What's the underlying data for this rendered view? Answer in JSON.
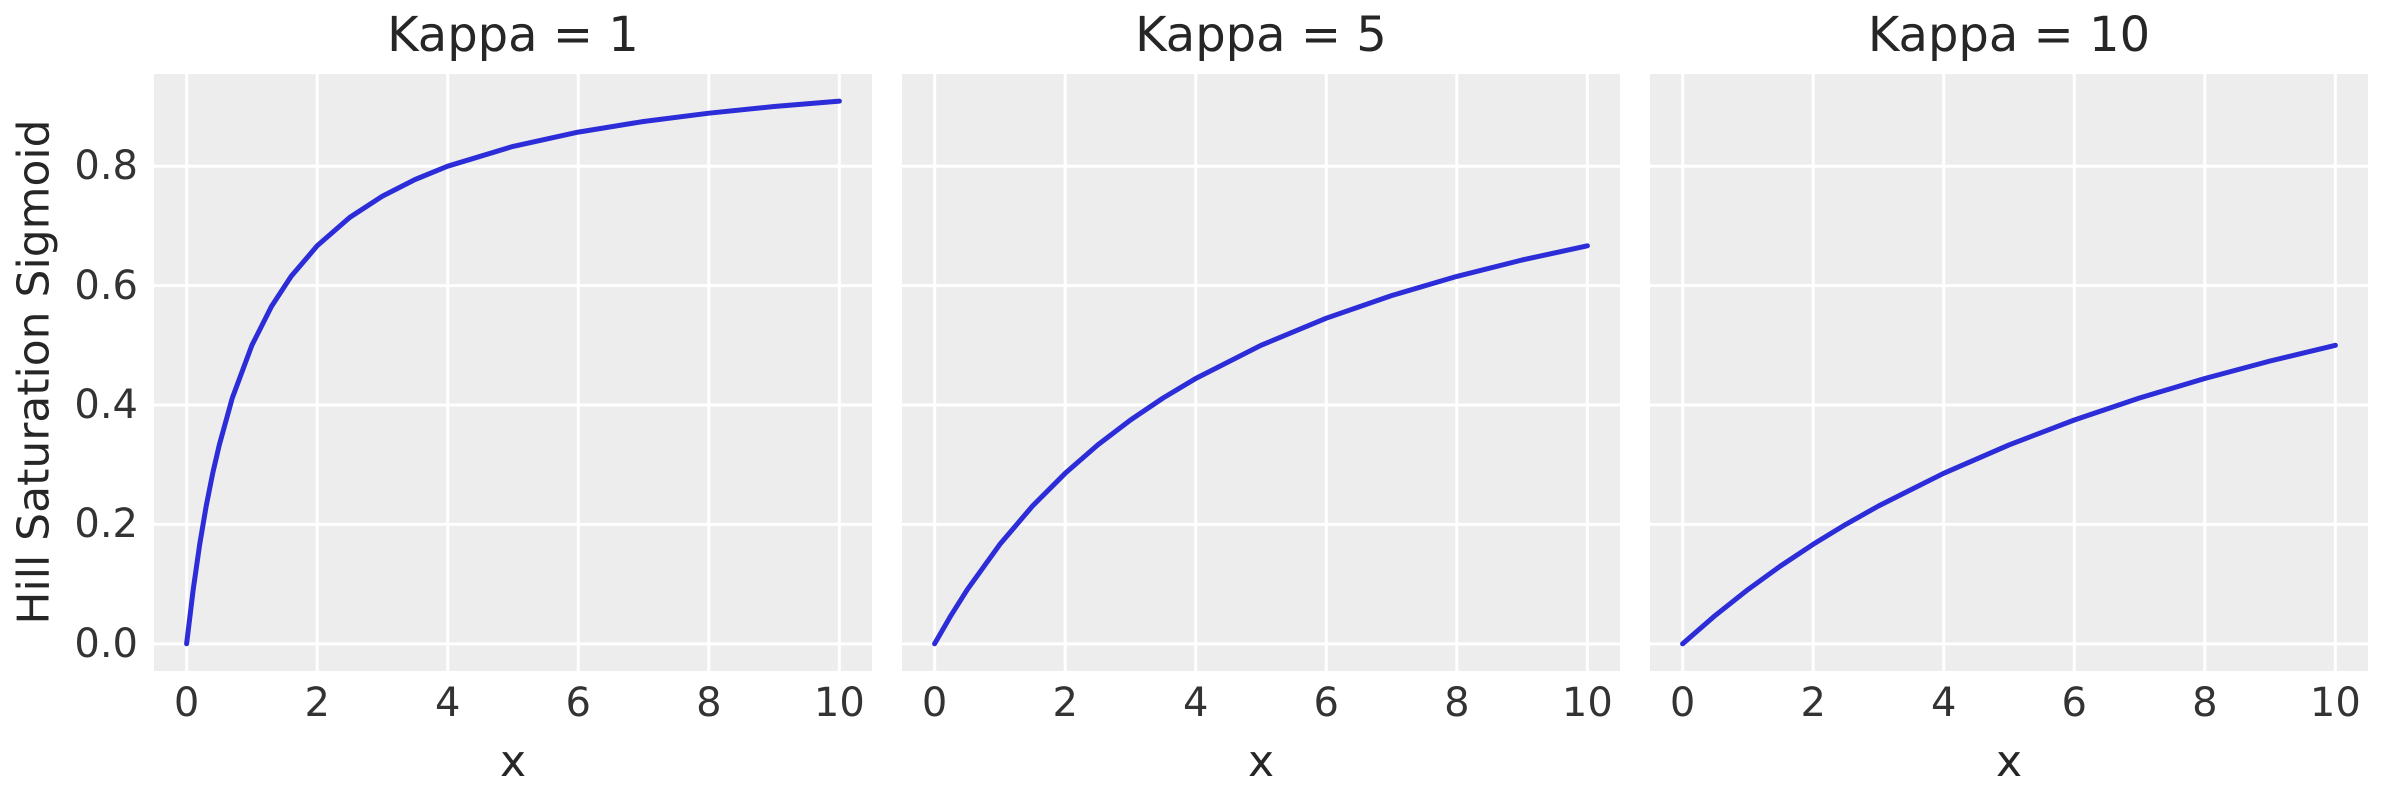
{
  "figure": {
    "background": "#ffffff",
    "axes_background": "#ededed",
    "grid_color": "#ffffff",
    "line_color": "#2c2cd8",
    "title_color": "#262626",
    "tick_color": "#333333"
  },
  "shared": {
    "ylabel": "Hill Saturation Sigmoid",
    "xlabel": "x",
    "yticks": [
      "0.0",
      "0.2",
      "0.4",
      "0.6",
      "0.8"
    ],
    "xticks": [
      "0",
      "2",
      "4",
      "6",
      "8",
      "10"
    ]
  },
  "chart_data": [
    {
      "type": "line",
      "title": "Kappa = 1",
      "kappa": 1,
      "xlabel": "x",
      "ylabel": "Hill Saturation Sigmoid",
      "grid": true,
      "legend": false,
      "xlim": [
        -0.5,
        10.5
      ],
      "ylim": [
        -0.0455,
        0.9545
      ],
      "xticks": [
        0,
        2,
        4,
        6,
        8,
        10
      ],
      "yticks": [
        0,
        0.2,
        0.4,
        0.6,
        0.8
      ],
      "x": [
        0,
        0.1,
        0.2,
        0.3,
        0.4,
        0.5,
        0.7,
        1,
        1.3,
        1.6,
        2,
        2.5,
        3,
        3.5,
        4,
        5,
        6,
        7,
        8,
        9,
        10
      ],
      "y": [
        0,
        0.0909,
        0.1667,
        0.2308,
        0.2857,
        0.3333,
        0.4118,
        0.5,
        0.5652,
        0.6154,
        0.6667,
        0.7143,
        0.75,
        0.7778,
        0.8,
        0.8333,
        0.8571,
        0.875,
        0.8889,
        0.9,
        0.9091
      ],
      "line_color": "#2c2cd8"
    },
    {
      "type": "line",
      "title": "Kappa = 5",
      "kappa": 5,
      "xlabel": "x",
      "grid": true,
      "legend": false,
      "xlim": [
        -0.5,
        10.5
      ],
      "ylim": [
        -0.0455,
        0.9545
      ],
      "xticks": [
        0,
        2,
        4,
        6,
        8,
        10
      ],
      "yticks": [
        0,
        0.2,
        0.4,
        0.6,
        0.8
      ],
      "x": [
        0,
        0.25,
        0.5,
        1,
        1.5,
        2,
        2.5,
        3,
        3.5,
        4,
        5,
        6,
        7,
        8,
        9,
        10
      ],
      "y": [
        0,
        0.0476,
        0.0909,
        0.1667,
        0.2308,
        0.2857,
        0.3333,
        0.375,
        0.4118,
        0.4444,
        0.5,
        0.5455,
        0.5833,
        0.6154,
        0.6429,
        0.6667
      ],
      "line_color": "#2c2cd8"
    },
    {
      "type": "line",
      "title": "Kappa = 10",
      "kappa": 10,
      "xlabel": "x",
      "grid": true,
      "legend": false,
      "xlim": [
        -0.5,
        10.5
      ],
      "ylim": [
        -0.0455,
        0.9545
      ],
      "xticks": [
        0,
        2,
        4,
        6,
        8,
        10
      ],
      "yticks": [
        0,
        0.2,
        0.4,
        0.6,
        0.8
      ],
      "x": [
        0,
        0.5,
        1,
        1.5,
        2,
        2.5,
        3,
        4,
        5,
        6,
        7,
        8,
        9,
        10
      ],
      "y": [
        0,
        0.0476,
        0.0909,
        0.1304,
        0.1667,
        0.2,
        0.2308,
        0.2857,
        0.3333,
        0.375,
        0.4118,
        0.4444,
        0.4737,
        0.5
      ],
      "line_color": "#2c2cd8"
    }
  ]
}
